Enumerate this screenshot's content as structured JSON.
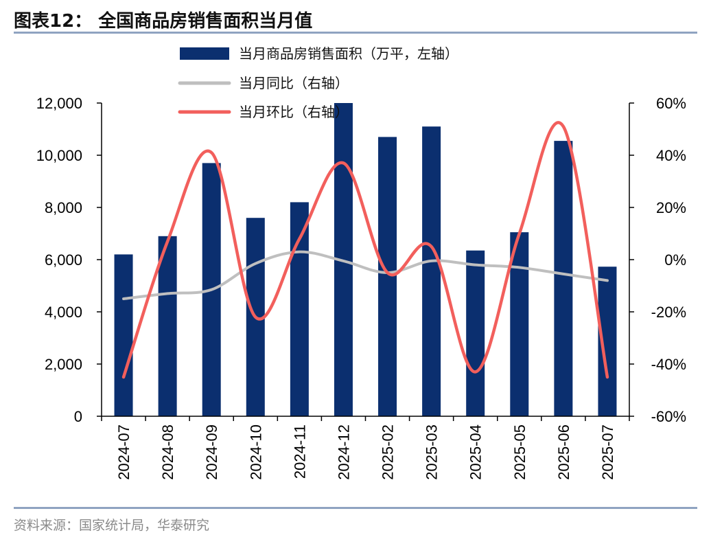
{
  "header": {
    "title": "图表12：  全国商品房销售面积当月值"
  },
  "footer": {
    "source": "资料来源：国家统计局，华泰研究"
  },
  "chart_data": {
    "type": "bar",
    "categories": [
      "2024-07",
      "2024-08",
      "2024-09",
      "2024-10",
      "2024-11",
      "2024-12",
      "2025-02",
      "2025-03",
      "2025-04",
      "2025-05",
      "2025-06",
      "2025-07"
    ],
    "series": [
      {
        "name": "当月商品房销售面积（万平，左轴）",
        "type": "bar",
        "axis": "left",
        "color": "#0b2f6f",
        "values": [
          6200,
          6900,
          9700,
          7600,
          8200,
          13000,
          10700,
          11100,
          6350,
          7050,
          10550,
          5730
        ]
      },
      {
        "name": "当月同比（右轴）",
        "type": "line",
        "axis": "right",
        "color": "#bfbfbf",
        "values": [
          -15,
          -13,
          -11.5,
          -1.5,
          3,
          -0.5,
          -5,
          -0.5,
          -2,
          -3,
          -5.5,
          -8
        ]
      },
      {
        "name": "当月环比（右轴）",
        "type": "line",
        "axis": "right",
        "color": "#f25f5c",
        "values": [
          -45,
          7,
          41,
          -22,
          8,
          37,
          -5,
          5,
          -43,
          10,
          51,
          -45
        ]
      }
    ],
    "left_axis": {
      "ylim": [
        0,
        12000
      ],
      "ticks": [
        0,
        2000,
        4000,
        6000,
        8000,
        10000,
        12000
      ],
      "tick_labels": [
        "0",
        "2,000",
        "4,000",
        "6,000",
        "8,000",
        "10,000",
        "12,000"
      ]
    },
    "right_axis": {
      "ylim": [
        -60,
        60
      ],
      "ticks": [
        -60,
        -40,
        -20,
        0,
        20,
        40,
        60
      ],
      "tick_labels": [
        "-60%",
        "-40%",
        "-20%",
        "0%",
        "20%",
        "40%",
        "60%"
      ]
    },
    "legend_position": "top-center",
    "grid": false,
    "x_tick_rotation": "vertical"
  }
}
